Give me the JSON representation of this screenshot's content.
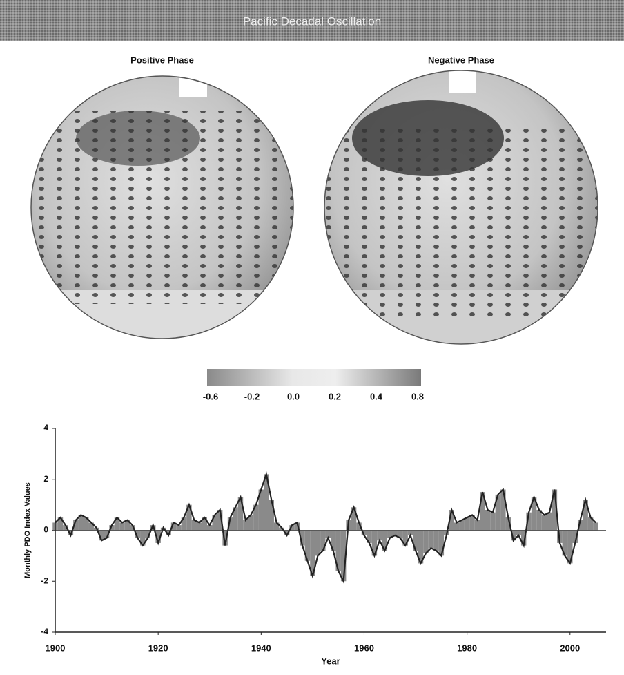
{
  "title": "Pacific Decadal Oscillation",
  "maps": [
    {
      "title": "Positive Phase"
    },
    {
      "title": "Negative Phase"
    }
  ],
  "colorbar": {
    "labels": [
      "-0.6",
      "-0.2",
      "0.0",
      "0.2",
      "0.4",
      "0.8"
    ]
  },
  "chart_data": {
    "type": "line",
    "xlabel": "Year",
    "ylabel": "Monthly PDO Index Values",
    "x": [
      1900,
      1901,
      1902,
      1903,
      1904,
      1905,
      1906,
      1907,
      1908,
      1909,
      1910,
      1911,
      1912,
      1913,
      1914,
      1915,
      1916,
      1917,
      1918,
      1919,
      1920,
      1921,
      1922,
      1923,
      1924,
      1925,
      1926,
      1927,
      1928,
      1929,
      1930,
      1931,
      1932,
      1933,
      1934,
      1935,
      1936,
      1937,
      1938,
      1939,
      1940,
      1941,
      1942,
      1943,
      1944,
      1945,
      1946,
      1947,
      1948,
      1949,
      1950,
      1951,
      1952,
      1953,
      1954,
      1955,
      1956,
      1957,
      1958,
      1959,
      1960,
      1961,
      1962,
      1963,
      1964,
      1965,
      1966,
      1967,
      1968,
      1969,
      1970,
      1971,
      1972,
      1973,
      1974,
      1975,
      1976,
      1977,
      1978,
      1979,
      1980,
      1981,
      1982,
      1983,
      1984,
      1985,
      1986,
      1987,
      1988,
      1989,
      1990,
      1991,
      1992,
      1993,
      1994,
      1995,
      1996,
      1997,
      1998,
      1999,
      2000,
      2001,
      2002,
      2003,
      2004,
      2005
    ],
    "values": [
      0.3,
      0.5,
      0.2,
      -0.2,
      0.4,
      0.6,
      0.5,
      0.3,
      0.1,
      -0.4,
      -0.3,
      0.2,
      0.5,
      0.3,
      0.4,
      0.2,
      -0.3,
      -0.6,
      -0.3,
      0.2,
      -0.5,
      0.1,
      -0.2,
      0.3,
      0.2,
      0.5,
      1.0,
      0.4,
      0.3,
      0.5,
      0.2,
      0.6,
      0.8,
      -0.6,
      0.5,
      0.9,
      1.3,
      0.4,
      0.6,
      1.0,
      1.6,
      2.2,
      1.2,
      0.3,
      0.1,
      -0.2,
      0.2,
      0.3,
      -0.6,
      -1.2,
      -1.8,
      -1.0,
      -0.8,
      -0.3,
      -0.8,
      -1.6,
      -2.0,
      0.4,
      0.9,
      0.3,
      -0.2,
      -0.5,
      -1.0,
      -0.4,
      -0.8,
      -0.3,
      -0.2,
      -0.3,
      -0.6,
      -0.2,
      -0.8,
      -1.3,
      -0.9,
      -0.7,
      -0.8,
      -1.0,
      -0.2,
      0.8,
      0.3,
      0.4,
      0.5,
      0.6,
      0.4,
      1.5,
      0.8,
      0.7,
      1.4,
      1.6,
      0.5,
      -0.4,
      -0.2,
      -0.6,
      0.7,
      1.3,
      0.8,
      0.6,
      0.7,
      1.6,
      -0.5,
      -1.0,
      -1.3,
      -0.5,
      0.4,
      1.2,
      0.5,
      0.3
    ],
    "color": "#222222",
    "fill_color": "#8a8a8a",
    "xlim": [
      1900,
      2007
    ],
    "ylim": [
      -4,
      4
    ],
    "xticks": [
      1900,
      1920,
      1940,
      1960,
      1980,
      2000
    ],
    "yticks": [
      -4,
      -2,
      0,
      2,
      4
    ]
  }
}
